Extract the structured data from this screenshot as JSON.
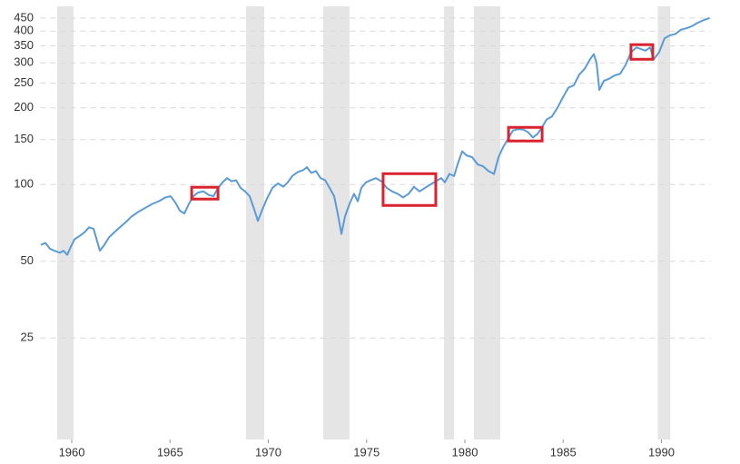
{
  "chart_data": {
    "type": "line",
    "log_scale": true,
    "grid": true,
    "x": [
      1958.43,
      1958.66,
      1958.89,
      1959.12,
      1959.4,
      1959.58,
      1959.77,
      1959.95,
      1960.14,
      1960.42,
      1960.65,
      1960.88,
      1961.11,
      1961.29,
      1961.43,
      1961.66,
      1961.89,
      1962.17,
      1962.45,
      1962.73,
      1963.05,
      1963.37,
      1963.74,
      1964.11,
      1964.43,
      1964.76,
      1965.03,
      1965.27,
      1965.5,
      1965.73,
      1965.96,
      1966.19,
      1966.42,
      1966.7,
      1966.97,
      1967.21,
      1967.44,
      1967.67,
      1967.9,
      1968.13,
      1968.36,
      1968.59,
      1968.82,
      1969.05,
      1969.28,
      1969.47,
      1969.7,
      1969.93,
      1970.21,
      1970.49,
      1970.76,
      1970.99,
      1971.22,
      1971.5,
      1971.78,
      1971.96,
      1972.19,
      1972.42,
      1972.66,
      1972.89,
      1973.12,
      1973.35,
      1973.53,
      1973.72,
      1973.9,
      1974.13,
      1974.36,
      1974.55,
      1974.73,
      1974.97,
      1975.2,
      1975.47,
      1975.75,
      1976.03,
      1976.3,
      1976.58,
      1976.86,
      1977.14,
      1977.41,
      1977.69,
      1977.97,
      1978.24,
      1978.52,
      1978.8,
      1978.98,
      1979.21,
      1979.45,
      1979.63,
      1979.86,
      1980.09,
      1980.37,
      1980.65,
      1980.92,
      1981.2,
      1981.48,
      1981.71,
      1981.94,
      1982.17,
      1982.45,
      1982.73,
      1983.0,
      1983.23,
      1983.46,
      1983.7,
      1983.93,
      1984.16,
      1984.43,
      1984.71,
      1984.99,
      1985.27,
      1985.54,
      1985.82,
      1986.1,
      1986.37,
      1986.56,
      1986.7,
      1986.84,
      1987.07,
      1987.34,
      1987.62,
      1987.9,
      1988.18,
      1988.45,
      1988.73,
      1988.96,
      1989.19,
      1989.42,
      1989.61,
      1989.88,
      1990.16,
      1990.44,
      1990.72,
      1990.99,
      1991.27,
      1991.55,
      1991.82,
      1992.1,
      1992.45
    ],
    "series": [
      {
        "color": "#5b9bd5",
        "values": [
          58,
          59,
          56,
          55,
          54,
          55,
          53,
          57,
          61,
          63,
          65,
          68,
          67,
          60,
          55,
          58,
          62,
          65,
          68,
          71,
          75,
          78,
          81,
          84,
          86,
          89,
          90,
          85,
          79,
          77,
          84,
          90,
          93,
          94,
          91,
          90,
          97,
          102,
          106,
          103,
          104,
          97,
          94,
          90,
          80,
          72,
          80,
          88,
          97,
          101,
          98,
          102,
          108,
          112,
          114,
          117,
          111,
          113,
          106,
          104,
          97,
          90,
          77,
          64,
          75,
          84,
          92,
          86,
          97,
          102,
          104,
          106,
          103,
          97,
          94,
          92,
          89,
          92,
          98,
          94,
          97,
          100,
          103,
          106,
          102,
          110,
          108,
          120,
          135,
          130,
          128,
          120,
          118,
          113,
          110,
          128,
          140,
          150,
          163,
          165,
          164,
          160,
          153,
          158,
          168,
          180,
          185,
          200,
          220,
          240,
          245,
          270,
          285,
          310,
          325,
          300,
          235,
          255,
          260,
          268,
          272,
          295,
          330,
          345,
          340,
          335,
          345,
          310,
          330,
          375,
          385,
          390,
          405,
          410,
          418,
          430,
          440,
          450
        ]
      }
    ],
    "xlim": [
      1958.4,
      1992.5
    ],
    "ylim": [
      10,
      500
    ],
    "xticks": [
      1960,
      1965,
      1970,
      1975,
      1980,
      1985,
      1990
    ],
    "yticks": [
      25,
      50,
      100,
      150,
      200,
      250,
      300,
      350,
      400,
      450
    ],
    "shaded_periods": [
      [
        1959.26,
        1960.09
      ],
      [
        1968.87,
        1969.79
      ],
      [
        1972.79,
        1974.13
      ],
      [
        1978.94,
        1979.45
      ],
      [
        1980.46,
        1981.8
      ],
      [
        1989.81,
        1990.45
      ]
    ],
    "shade_color": "#e5e5e5",
    "highlights": [
      {
        "x": [
          1966.1,
          1967.44
        ],
        "y": [
          87.7,
          97.6
        ]
      },
      {
        "x": [
          1975.84,
          1978.52
        ],
        "y": [
          82.8,
          110.3
        ]
      },
      {
        "x": [
          1982.22,
          1983.93
        ],
        "y": [
          148.2,
          167.6
        ]
      },
      {
        "x": [
          1988.45,
          1989.56
        ],
        "y": [
          310,
          353.8
        ]
      }
    ],
    "highlight_color": "#d9232e"
  }
}
